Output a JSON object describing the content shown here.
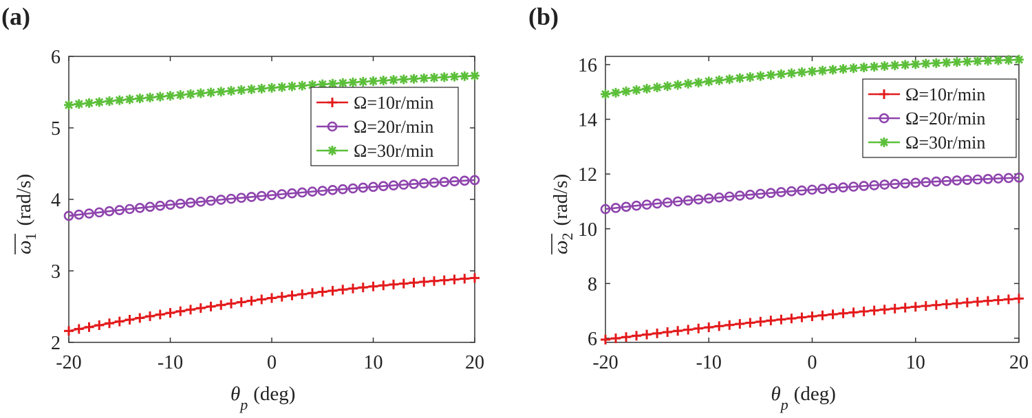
{
  "chart_data": [
    {
      "panel_label": "(a)",
      "type": "line",
      "xlabel_symbol": "θ",
      "xlabel_sub": "p",
      "xlabel_unit": "(deg)",
      "ylabel_symbol": "ω",
      "ylabel_sub": "1",
      "ylabel_unit": "(rad/s)",
      "xlim": [
        -20,
        20
      ],
      "ylim": [
        2,
        6
      ],
      "xticks": [
        "-20",
        "-10",
        "0",
        "10",
        "20"
      ],
      "yticks": [
        "2",
        "3",
        "4",
        "5",
        "6"
      ],
      "x_start": -20,
      "x_end": 20,
      "n_points": 41,
      "legend_position": "upper-right",
      "series": [
        {
          "name": "Ω=10r/min",
          "color": "#e31a1c",
          "marker": "plus",
          "y_start": 2.16,
          "y_mid": 2.62,
          "y_end": 2.9
        },
        {
          "name": "Ω=20r/min",
          "color": "#8e44ad",
          "marker": "circle",
          "y_start": 3.77,
          "y_mid": 4.06,
          "y_end": 4.27
        },
        {
          "name": "Ω=30r/min",
          "color": "#5cbf3a",
          "marker": "asterisk",
          "y_start": 5.32,
          "y_mid": 5.56,
          "y_end": 5.73
        }
      ]
    },
    {
      "panel_label": "(b)",
      "type": "line",
      "xlabel_symbol": "θ",
      "xlabel_sub": "p",
      "xlabel_unit": "(deg)",
      "ylabel_symbol": "ω",
      "ylabel_sub": "2",
      "ylabel_unit": "(rad/s)",
      "xlim": [
        -20,
        20
      ],
      "ylim": [
        5.85,
        16.3
      ],
      "xticks": [
        "-20",
        "-10",
        "0",
        "10",
        "20"
      ],
      "yticks": [
        "6",
        "8",
        "10",
        "12",
        "14",
        "16"
      ],
      "x_start": -20,
      "x_end": 20,
      "n_points": 41,
      "legend_position": "upper-right",
      "series": [
        {
          "name": "Ω=10r/min",
          "color": "#e31a1c",
          "marker": "plus",
          "y_start": 5.95,
          "y_mid": 6.8,
          "y_end": 7.45
        },
        {
          "name": "Ω=20r/min",
          "color": "#8e44ad",
          "marker": "circle",
          "y_start": 10.72,
          "y_mid": 11.43,
          "y_end": 11.87
        },
        {
          "name": "Ω=30r/min",
          "color": "#5cbf3a",
          "marker": "asterisk",
          "y_start": 14.92,
          "y_mid": 15.75,
          "y_end": 16.18
        }
      ]
    }
  ]
}
